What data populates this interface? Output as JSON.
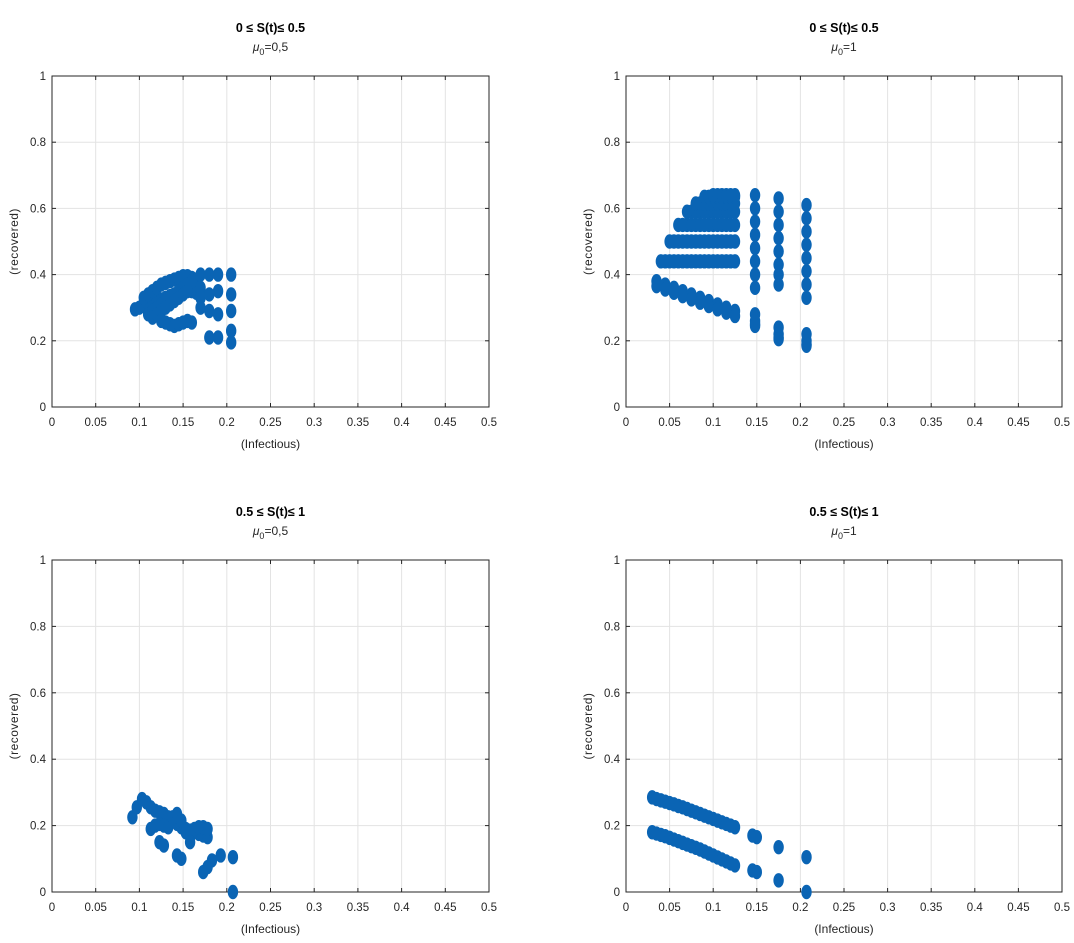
{
  "figure": {
    "panels_count": 4
  },
  "chart_data": [
    {
      "type": "scatter",
      "title": "0 ≤ S(t)≤ 0.5",
      "subtitle": {
        "symbol": "μ",
        "sub": "0",
        "value": "=0,5"
      },
      "xlabel": "(Infectious)",
      "ylabel": "(recovered)",
      "xlim": [
        0,
        0.5
      ],
      "ylim": [
        0,
        1
      ],
      "xticks": [
        "0",
        "0.05",
        "0.1",
        "0.15",
        "0.2",
        "0.25",
        "0.3",
        "0.35",
        "0.4",
        "0.45",
        "0.5"
      ],
      "yticks": [
        "0",
        "0.2",
        "0.4",
        "0.6",
        "0.8",
        "1"
      ],
      "grid": true,
      "marker_color": "#0a64b4",
      "x": [
        0.095,
        0.1,
        0.105,
        0.11,
        0.115,
        0.12,
        0.125,
        0.13,
        0.135,
        0.14,
        0.145,
        0.15,
        0.155,
        0.16,
        0.165,
        0.17,
        0.105,
        0.11,
        0.115,
        0.12,
        0.125,
        0.13,
        0.135,
        0.14,
        0.145,
        0.15,
        0.155,
        0.16,
        0.165,
        0.11,
        0.115,
        0.12,
        0.125,
        0.13,
        0.135,
        0.14,
        0.145,
        0.15,
        0.155,
        0.16,
        0.115,
        0.12,
        0.125,
        0.13,
        0.135,
        0.14,
        0.145,
        0.15,
        0.155,
        0.125,
        0.13,
        0.135,
        0.14,
        0.145,
        0.15,
        0.155,
        0.16,
        0.17,
        0.17,
        0.17,
        0.17,
        0.18,
        0.18,
        0.18,
        0.18,
        0.19,
        0.19,
        0.19,
        0.19,
        0.205,
        0.205,
        0.205,
        0.205,
        0.205
      ],
      "y": [
        0.295,
        0.3,
        0.305,
        0.31,
        0.315,
        0.32,
        0.325,
        0.33,
        0.335,
        0.34,
        0.345,
        0.35,
        0.355,
        0.35,
        0.345,
        0.34,
        0.33,
        0.34,
        0.35,
        0.36,
        0.37,
        0.375,
        0.38,
        0.385,
        0.39,
        0.395,
        0.395,
        0.39,
        0.385,
        0.28,
        0.29,
        0.3,
        0.31,
        0.32,
        0.33,
        0.34,
        0.35,
        0.36,
        0.37,
        0.38,
        0.27,
        0.28,
        0.29,
        0.3,
        0.31,
        0.32,
        0.33,
        0.34,
        0.35,
        0.26,
        0.255,
        0.25,
        0.245,
        0.25,
        0.255,
        0.26,
        0.255,
        0.4,
        0.36,
        0.33,
        0.3,
        0.4,
        0.34,
        0.29,
        0.21,
        0.4,
        0.35,
        0.28,
        0.21,
        0.4,
        0.34,
        0.29,
        0.23,
        0.195
      ]
    },
    {
      "type": "scatter",
      "title": "0 ≤ S(t)≤ 0.5",
      "subtitle": {
        "symbol": "μ",
        "sub": "0",
        "value": "=1"
      },
      "xlabel": "(Infectious)",
      "ylabel": "(recovered)",
      "xlim": [
        0,
        0.5
      ],
      "ylim": [
        0,
        1
      ],
      "xticks": [
        "0",
        "0.05",
        "0.1",
        "0.15",
        "0.2",
        "0.25",
        "0.3",
        "0.35",
        "0.4",
        "0.45",
        "0.5"
      ],
      "yticks": [
        "0",
        "0.2",
        "0.4",
        "0.6",
        "0.8",
        "1"
      ],
      "grid": true,
      "marker_color": "#0a64b4",
      "x": [
        0.035,
        0.045,
        0.055,
        0.065,
        0.075,
        0.085,
        0.095,
        0.105,
        0.115,
        0.125,
        0.035,
        0.045,
        0.055,
        0.065,
        0.075,
        0.085,
        0.095,
        0.105,
        0.115,
        0.125,
        0.04,
        0.045,
        0.05,
        0.055,
        0.06,
        0.065,
        0.07,
        0.075,
        0.08,
        0.085,
        0.09,
        0.095,
        0.1,
        0.105,
        0.11,
        0.115,
        0.12,
        0.125,
        0.05,
        0.055,
        0.06,
        0.065,
        0.07,
        0.075,
        0.08,
        0.085,
        0.09,
        0.095,
        0.1,
        0.105,
        0.11,
        0.115,
        0.12,
        0.125,
        0.06,
        0.065,
        0.07,
        0.075,
        0.08,
        0.085,
        0.09,
        0.095,
        0.1,
        0.105,
        0.11,
        0.115,
        0.12,
        0.125,
        0.07,
        0.075,
        0.08,
        0.085,
        0.09,
        0.095,
        0.1,
        0.105,
        0.11,
        0.115,
        0.12,
        0.125,
        0.08,
        0.085,
        0.09,
        0.095,
        0.1,
        0.105,
        0.11,
        0.115,
        0.12,
        0.125,
        0.09,
        0.095,
        0.1,
        0.105,
        0.11,
        0.115,
        0.12,
        0.125,
        0.1,
        0.105,
        0.11,
        0.115,
        0.12,
        0.125,
        0.148,
        0.148,
        0.148,
        0.148,
        0.148,
        0.148,
        0.148,
        0.148,
        0.148,
        0.148,
        0.148,
        0.148,
        0.175,
        0.175,
        0.175,
        0.175,
        0.175,
        0.175,
        0.175,
        0.175,
        0.175,
        0.175,
        0.175,
        0.175,
        0.207,
        0.207,
        0.207,
        0.207,
        0.207,
        0.207,
        0.207,
        0.207,
        0.207,
        0.207,
        0.207,
        0.207
      ],
      "y": [
        0.38,
        0.37,
        0.36,
        0.35,
        0.34,
        0.33,
        0.32,
        0.31,
        0.3,
        0.29,
        0.365,
        0.355,
        0.345,
        0.335,
        0.325,
        0.315,
        0.305,
        0.295,
        0.285,
        0.275,
        0.44,
        0.44,
        0.44,
        0.44,
        0.44,
        0.44,
        0.44,
        0.44,
        0.44,
        0.44,
        0.44,
        0.44,
        0.44,
        0.44,
        0.44,
        0.44,
        0.44,
        0.44,
        0.5,
        0.5,
        0.5,
        0.5,
        0.5,
        0.5,
        0.5,
        0.5,
        0.5,
        0.5,
        0.5,
        0.5,
        0.5,
        0.5,
        0.5,
        0.5,
        0.55,
        0.55,
        0.55,
        0.55,
        0.55,
        0.55,
        0.55,
        0.55,
        0.55,
        0.55,
        0.55,
        0.55,
        0.55,
        0.55,
        0.59,
        0.59,
        0.59,
        0.59,
        0.59,
        0.59,
        0.59,
        0.59,
        0.59,
        0.59,
        0.59,
        0.59,
        0.615,
        0.615,
        0.615,
        0.615,
        0.615,
        0.615,
        0.615,
        0.615,
        0.615,
        0.615,
        0.635,
        0.635,
        0.635,
        0.635,
        0.635,
        0.635,
        0.635,
        0.635,
        0.64,
        0.64,
        0.64,
        0.64,
        0.64,
        0.64,
        0.64,
        0.6,
        0.56,
        0.52,
        0.48,
        0.44,
        0.4,
        0.36,
        0.28,
        0.26,
        0.25,
        0.245,
        0.63,
        0.59,
        0.55,
        0.51,
        0.47,
        0.43,
        0.4,
        0.37,
        0.24,
        0.22,
        0.21,
        0.205,
        0.61,
        0.57,
        0.53,
        0.49,
        0.45,
        0.41,
        0.37,
        0.33,
        0.22,
        0.2,
        0.19,
        0.185
      ]
    },
    {
      "type": "scatter",
      "title": "0.5 ≤ S(t)≤ 1",
      "subtitle": {
        "symbol": "μ",
        "sub": "0",
        "value": "=0,5"
      },
      "xlabel": "(Infectious)",
      "ylabel": "(recovered)",
      "xlim": [
        0,
        0.5
      ],
      "ylim": [
        0,
        1
      ],
      "xticks": [
        "0",
        "0.05",
        "0.1",
        "0.15",
        "0.2",
        "0.25",
        "0.3",
        "0.35",
        "0.4",
        "0.45",
        "0.5"
      ],
      "yticks": [
        "0",
        "0.2",
        "0.4",
        "0.6",
        "0.8",
        "1"
      ],
      "grid": true,
      "marker_color": "#0a64b4",
      "x": [
        0.092,
        0.097,
        0.103,
        0.108,
        0.113,
        0.118,
        0.123,
        0.128,
        0.133,
        0.138,
        0.143,
        0.148,
        0.153,
        0.158,
        0.163,
        0.168,
        0.173,
        0.178,
        0.113,
        0.118,
        0.123,
        0.128,
        0.133,
        0.138,
        0.143,
        0.148,
        0.153,
        0.158,
        0.163,
        0.168,
        0.173,
        0.178,
        0.123,
        0.128,
        0.143,
        0.148,
        0.173,
        0.178,
        0.183,
        0.193,
        0.207,
        0.207
      ],
      "y": [
        0.225,
        0.255,
        0.28,
        0.27,
        0.255,
        0.245,
        0.24,
        0.235,
        0.225,
        0.215,
        0.205,
        0.195,
        0.19,
        0.185,
        0.18,
        0.175,
        0.17,
        0.165,
        0.19,
        0.2,
        0.205,
        0.2,
        0.195,
        0.225,
        0.235,
        0.215,
        0.18,
        0.15,
        0.19,
        0.195,
        0.195,
        0.19,
        0.15,
        0.14,
        0.11,
        0.1,
        0.06,
        0.075,
        0.095,
        0.11,
        0.105,
        0.0
      ]
    },
    {
      "type": "scatter",
      "title": "0.5 ≤ S(t)≤ 1",
      "subtitle": {
        "symbol": "μ",
        "sub": "0",
        "value": "=1"
      },
      "xlabel": "(Infectious)",
      "ylabel": "(recovered)",
      "xlim": [
        0,
        0.5
      ],
      "ylim": [
        0,
        1
      ],
      "xticks": [
        "0",
        "0.05",
        "0.1",
        "0.15",
        "0.2",
        "0.25",
        "0.3",
        "0.35",
        "0.4",
        "0.45",
        "0.5"
      ],
      "yticks": [
        "0",
        "0.2",
        "0.4",
        "0.6",
        "0.8",
        "1"
      ],
      "grid": true,
      "marker_color": "#0a64b4",
      "x": [
        0.03,
        0.035,
        0.04,
        0.045,
        0.05,
        0.055,
        0.06,
        0.065,
        0.07,
        0.075,
        0.08,
        0.085,
        0.09,
        0.095,
        0.1,
        0.105,
        0.11,
        0.115,
        0.12,
        0.125,
        0.03,
        0.035,
        0.04,
        0.045,
        0.05,
        0.055,
        0.06,
        0.065,
        0.07,
        0.075,
        0.08,
        0.085,
        0.09,
        0.095,
        0.1,
        0.105,
        0.11,
        0.115,
        0.12,
        0.125,
        0.145,
        0.15,
        0.145,
        0.15,
        0.175,
        0.175,
        0.207,
        0.207
      ],
      "y": [
        0.285,
        0.28,
        0.276,
        0.272,
        0.268,
        0.264,
        0.259,
        0.255,
        0.25,
        0.245,
        0.24,
        0.235,
        0.23,
        0.225,
        0.22,
        0.215,
        0.21,
        0.205,
        0.2,
        0.195,
        0.18,
        0.176,
        0.172,
        0.168,
        0.163,
        0.158,
        0.153,
        0.148,
        0.143,
        0.138,
        0.133,
        0.128,
        0.122,
        0.116,
        0.11,
        0.104,
        0.098,
        0.092,
        0.086,
        0.08,
        0.17,
        0.165,
        0.065,
        0.06,
        0.135,
        0.035,
        0.105,
        0.0
      ]
    }
  ]
}
